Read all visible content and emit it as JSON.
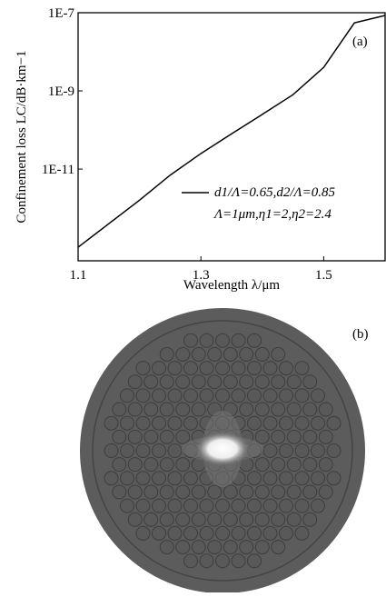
{
  "chart_data": {
    "type": "line",
    "panel_label": "(a)",
    "x": [
      1.1,
      1.15,
      1.2,
      1.25,
      1.3,
      1.35,
      1.4,
      1.45,
      1.5,
      1.55,
      1.6
    ],
    "series": [
      {
        "name": "d1/Λ=0.65,d2/Λ=0.85",
        "color": "#000000",
        "values": [
          1e-13,
          4e-13,
          1.6e-12,
          7e-12,
          2.5e-11,
          8e-11,
          2.5e-10,
          8e-10,
          4e-09,
          5.5e-08,
          8.5e-08
        ]
      }
    ],
    "annotation": "Λ=1μm,η1=2,η2=2.4",
    "xlabel": "Wavelength λ/μm",
    "ylabel": "Confinement loss LC/dB·km−1",
    "log_y": true,
    "xlim": [
      1.1,
      1.6
    ],
    "xticks": [
      1.1,
      1.3,
      1.5
    ],
    "ylim": [
      4.5e-14,
      1e-07
    ],
    "yticks": [
      {
        "value": 1e-07,
        "label": "1E-7"
      },
      {
        "value": 1e-09,
        "label": "1E-9"
      },
      {
        "value": 1e-11,
        "label": "1E-11"
      }
    ]
  },
  "image": {
    "panel_label": "(b)"
  }
}
